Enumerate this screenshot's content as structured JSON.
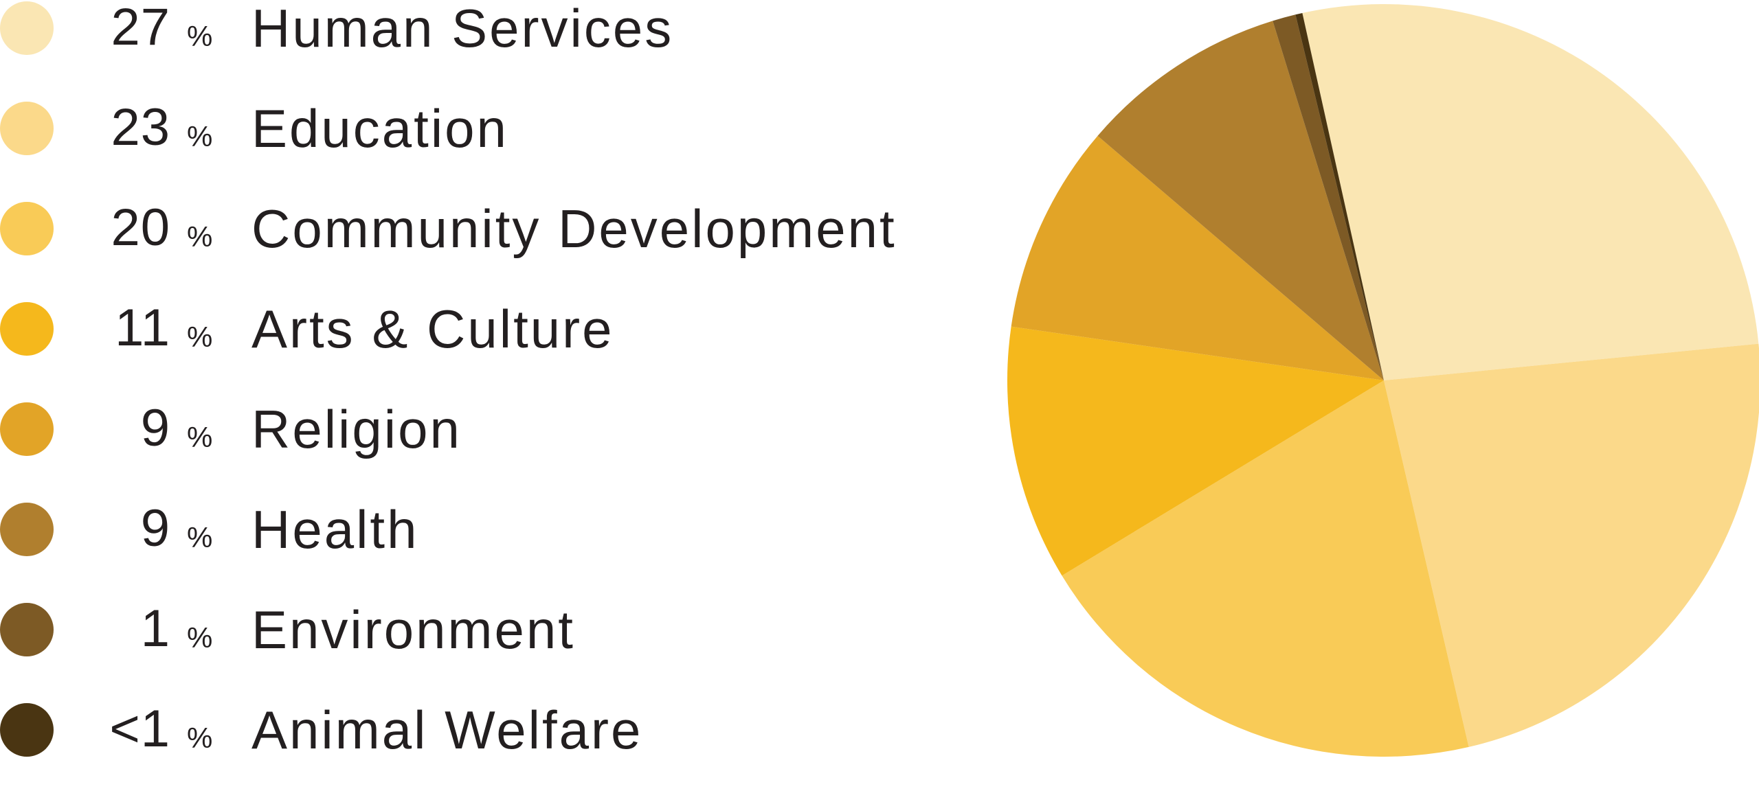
{
  "chart_data": {
    "type": "pie",
    "slices": [
      {
        "label": "Human Services",
        "value_label": "27",
        "value": 27.0,
        "color": "#FAE6B3"
      },
      {
        "label": "Education",
        "value_label": "23",
        "value": 23.0,
        "color": "#FBD98A"
      },
      {
        "label": "Community Development",
        "value_label": "20",
        "value": 20.0,
        "color": "#F9CB57"
      },
      {
        "label": "Arts & Culture",
        "value_label": "11",
        "value": 11.0,
        "color": "#F5B81C"
      },
      {
        "label": "Religion",
        "value_label": "9",
        "value": 9.0,
        "color": "#E2A427"
      },
      {
        "label": "Health",
        "value_label": "9",
        "value": 9.0,
        "color": "#B07F2E"
      },
      {
        "label": "Environment",
        "value_label": "1",
        "value": 1.0,
        "color": "#7D5A25"
      },
      {
        "label": "Animal Welfare",
        "value_label": "<1",
        "value": 0.3,
        "color": "#4A3512"
      }
    ],
    "percent_symbol": "%",
    "legend_placement": "left"
  }
}
